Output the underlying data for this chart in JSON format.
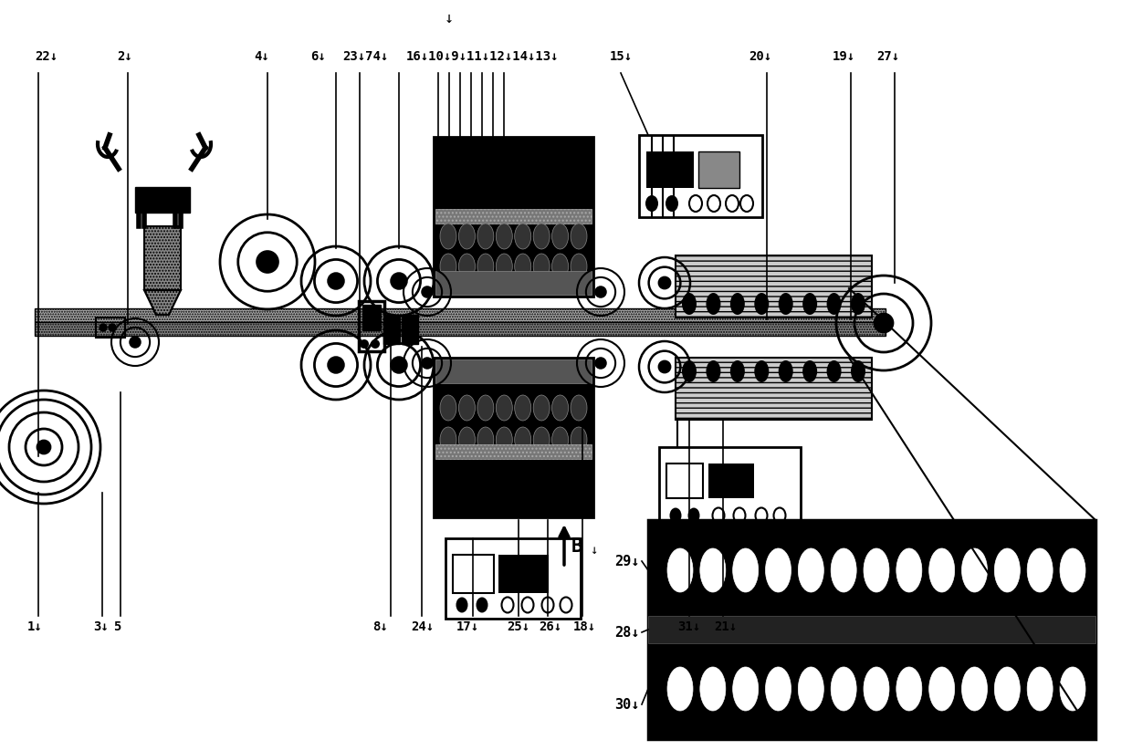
{
  "bg_color": "#ffffff",
  "lc": "#000000",
  "figsize": [
    12.4,
    8.22
  ],
  "dpi": 100
}
